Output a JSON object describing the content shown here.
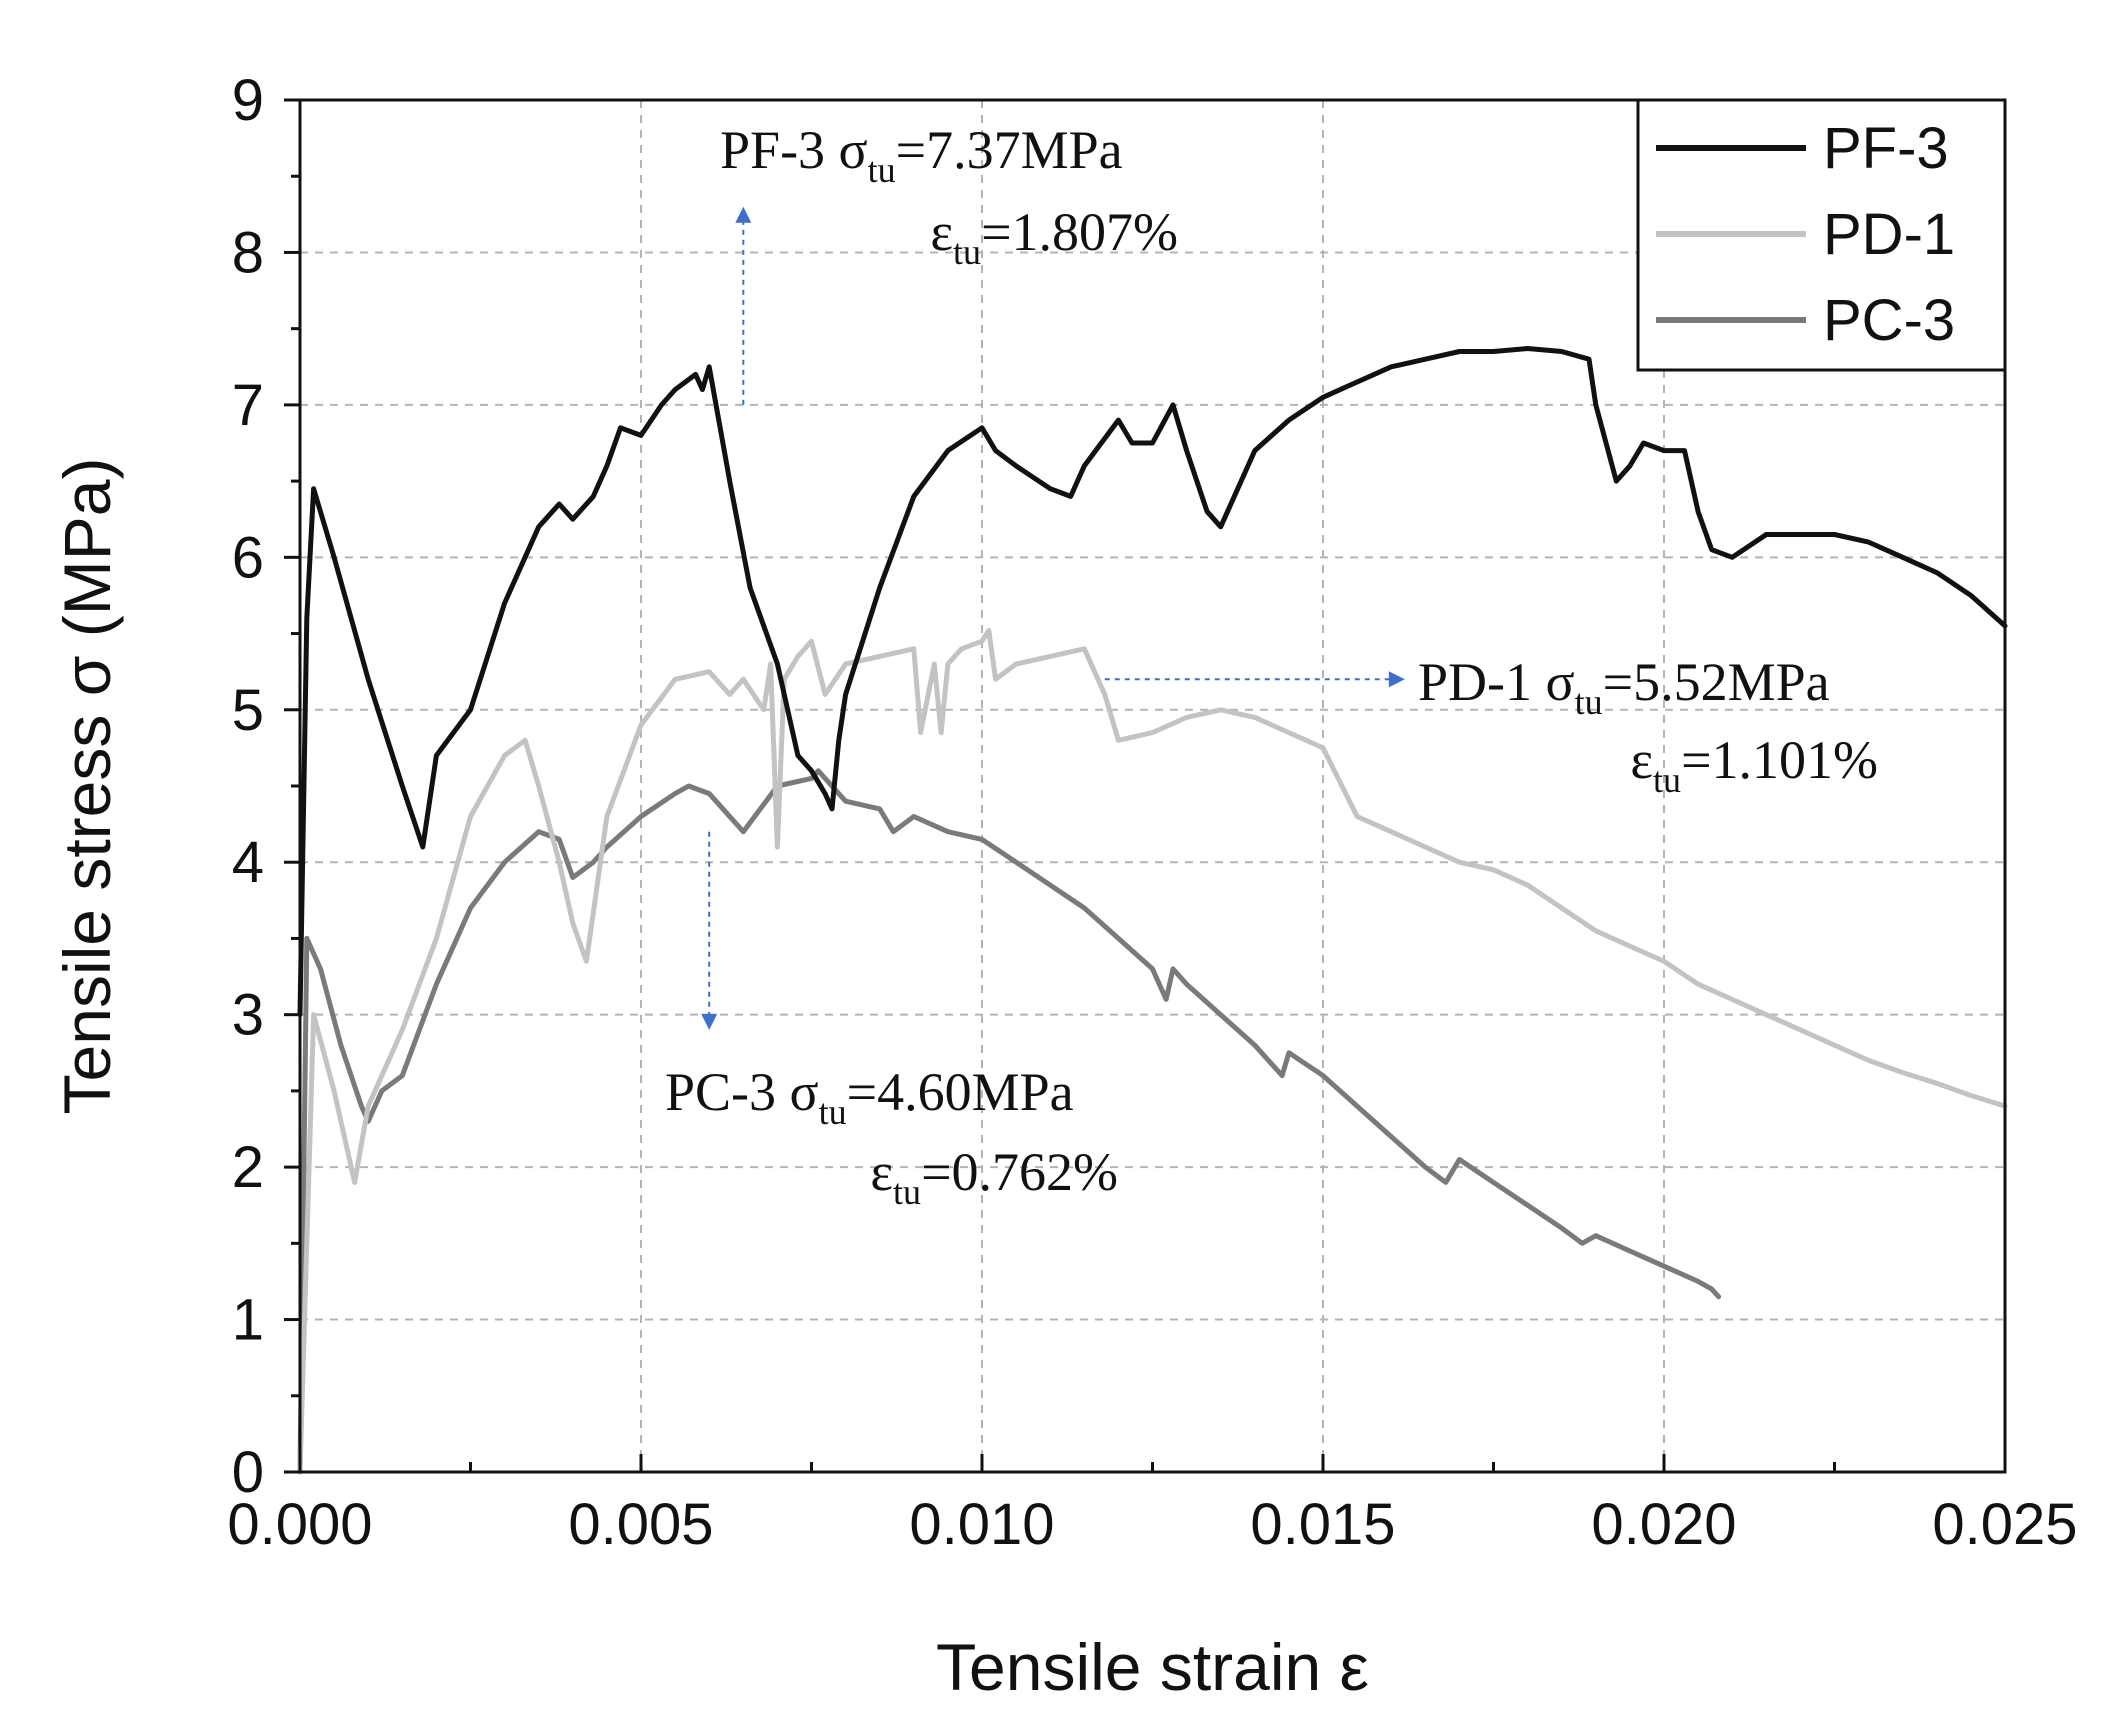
{
  "chart_data": {
    "type": "line",
    "title": "",
    "xlabel": "Tensile strain ε",
    "ylabel": "Tensile stress σ (MPa)",
    "xlim": [
      0,
      0.025
    ],
    "ylim": [
      0,
      9
    ],
    "x_ticks": [
      0,
      0.005,
      0.01,
      0.015,
      0.02,
      0.025
    ],
    "x_tick_labels": [
      "0.000",
      "0.005",
      "0.010",
      "0.015",
      "0.020",
      "0.025"
    ],
    "y_ticks": [
      0,
      1,
      2,
      3,
      4,
      5,
      6,
      7,
      8,
      9
    ],
    "y_tick_labels": [
      "0",
      "1",
      "2",
      "3",
      "4",
      "5",
      "6",
      "7",
      "8",
      "9"
    ],
    "grid": true,
    "legend_position": "top-right",
    "series": [
      {
        "name": "PF-3",
        "color": "#111111",
        "x": [
          0,
          0.0001,
          0.0002,
          0.0005,
          0.001,
          0.0015,
          0.0018,
          0.002,
          0.0025,
          0.003,
          0.0035,
          0.0038,
          0.004,
          0.0043,
          0.0045,
          0.0047,
          0.005,
          0.0053,
          0.0055,
          0.0058,
          0.0059,
          0.006,
          0.0063,
          0.0066,
          0.007,
          0.0073,
          0.0075,
          0.0077,
          0.0078,
          0.0079,
          0.008,
          0.0085,
          0.009,
          0.0095,
          0.01,
          0.0102,
          0.0105,
          0.011,
          0.0113,
          0.0115,
          0.012,
          0.0122,
          0.0125,
          0.0128,
          0.013,
          0.0133,
          0.0135,
          0.014,
          0.0145,
          0.015,
          0.0155,
          0.016,
          0.0165,
          0.017,
          0.0175,
          0.018,
          0.0185,
          0.0189,
          0.019,
          0.0193,
          0.0195,
          0.0197,
          0.02,
          0.0203,
          0.0205,
          0.0207,
          0.021,
          0.0215,
          0.022,
          0.0225,
          0.023,
          0.0235,
          0.024,
          0.0245,
          0.025
        ],
        "y": [
          3.0,
          5.6,
          6.45,
          6.0,
          5.2,
          4.5,
          4.1,
          4.7,
          5.0,
          5.7,
          6.2,
          6.35,
          6.25,
          6.4,
          6.6,
          6.85,
          6.8,
          7.0,
          7.1,
          7.2,
          7.1,
          7.25,
          6.5,
          5.8,
          5.3,
          4.7,
          4.6,
          4.45,
          4.35,
          4.8,
          5.1,
          5.8,
          6.4,
          6.7,
          6.85,
          6.7,
          6.6,
          6.45,
          6.4,
          6.6,
          6.9,
          6.75,
          6.75,
          7.0,
          6.7,
          6.3,
          6.2,
          6.7,
          6.9,
          7.05,
          7.15,
          7.25,
          7.3,
          7.35,
          7.35,
          7.37,
          7.35,
          7.3,
          7.0,
          6.5,
          6.6,
          6.75,
          6.7,
          6.7,
          6.3,
          6.05,
          6.0,
          6.15,
          6.15,
          6.15,
          6.1,
          6.0,
          5.9,
          5.75,
          5.55
        ]
      },
      {
        "name": "PD-1",
        "color": "#c3c3c3",
        "x": [
          0,
          0.0002,
          0.0005,
          0.0008,
          0.001,
          0.0015,
          0.002,
          0.0025,
          0.003,
          0.0033,
          0.0035,
          0.0038,
          0.004,
          0.0042,
          0.0045,
          0.005,
          0.0055,
          0.006,
          0.0063,
          0.0065,
          0.0068,
          0.0069,
          0.007,
          0.0071,
          0.0073,
          0.0075,
          0.0077,
          0.008,
          0.0085,
          0.009,
          0.0091,
          0.0093,
          0.0094,
          0.0095,
          0.0097,
          0.01,
          0.0101,
          0.0102,
          0.0105,
          0.011,
          0.0115,
          0.0118,
          0.012,
          0.0125,
          0.013,
          0.0135,
          0.014,
          0.0145,
          0.015,
          0.0155,
          0.016,
          0.0165,
          0.017,
          0.0175,
          0.018,
          0.0185,
          0.019,
          0.0195,
          0.02,
          0.0205,
          0.021,
          0.0215,
          0.022,
          0.0225,
          0.023,
          0.0235,
          0.024,
          0.0245,
          0.025
        ],
        "y": [
          0,
          3.0,
          2.5,
          1.9,
          2.4,
          2.9,
          3.5,
          4.3,
          4.7,
          4.8,
          4.5,
          4.0,
          3.6,
          3.35,
          4.3,
          4.9,
          5.2,
          5.25,
          5.1,
          5.2,
          5.0,
          5.3,
          4.1,
          5.2,
          5.35,
          5.45,
          5.1,
          5.3,
          5.35,
          5.4,
          4.85,
          5.3,
          4.85,
          5.3,
          5.4,
          5.45,
          5.52,
          5.2,
          5.3,
          5.35,
          5.4,
          5.1,
          4.8,
          4.85,
          4.95,
          5.0,
          4.95,
          4.85,
          4.75,
          4.3,
          4.2,
          4.1,
          4.0,
          3.95,
          3.85,
          3.7,
          3.55,
          3.45,
          3.35,
          3.2,
          3.1,
          3.0,
          2.9,
          2.8,
          2.7,
          2.62,
          2.55,
          2.47,
          2.4
        ]
      },
      {
        "name": "PC-3",
        "color": "#7a7a7a",
        "x": [
          0,
          0.0001,
          0.0003,
          0.0006,
          0.0009,
          0.001,
          0.0012,
          0.0015,
          0.002,
          0.0025,
          0.003,
          0.0035,
          0.0038,
          0.004,
          0.0043,
          0.0045,
          0.005,
          0.0055,
          0.0057,
          0.006,
          0.0065,
          0.007,
          0.0075,
          0.0076,
          0.008,
          0.0085,
          0.0087,
          0.009,
          0.0095,
          0.01,
          0.0105,
          0.011,
          0.0115,
          0.012,
          0.0125,
          0.0127,
          0.0128,
          0.013,
          0.0135,
          0.014,
          0.0144,
          0.0145,
          0.015,
          0.0155,
          0.016,
          0.0165,
          0.0168,
          0.017,
          0.0175,
          0.018,
          0.0185,
          0.0188,
          0.019,
          0.0195,
          0.02,
          0.0205,
          0.0207,
          0.0208
        ],
        "y": [
          0,
          3.5,
          3.3,
          2.8,
          2.4,
          2.3,
          2.5,
          2.6,
          3.2,
          3.7,
          4.0,
          4.2,
          4.15,
          3.9,
          4.0,
          4.1,
          4.3,
          4.45,
          4.5,
          4.45,
          4.2,
          4.5,
          4.55,
          4.6,
          4.4,
          4.35,
          4.2,
          4.3,
          4.2,
          4.15,
          4.0,
          3.85,
          3.7,
          3.5,
          3.3,
          3.1,
          3.3,
          3.2,
          3.0,
          2.8,
          2.6,
          2.75,
          2.6,
          2.4,
          2.2,
          2.0,
          1.9,
          2.05,
          1.9,
          1.75,
          1.6,
          1.5,
          1.55,
          1.45,
          1.35,
          1.25,
          1.2,
          1.15
        ]
      }
    ],
    "annotations": [
      {
        "id": "pf3",
        "series": "PF-3",
        "color": "#3e6fcb",
        "line1_prefix": "PF-3 σ",
        "line1_sub": "tu",
        "line1_value": "=7.37MPa",
        "line2_prefix": "ε",
        "line2_sub": "tu",
        "line2_value": "=1.807%",
        "anchor_x": 0.0065,
        "anchor_y": 7.0,
        "arrow_to_x": 0.0065,
        "arrow_to_y": 8.3
      },
      {
        "id": "pd1",
        "series": "PD-1",
        "color": "#3e6fcb",
        "line1_prefix": "PD-1 σ",
        "line1_sub": "tu",
        "line1_value": "=5.52MPa",
        "line2_prefix": "ε",
        "line2_sub": "tu",
        "line2_value": "=1.101%",
        "anchor_x": 0.0118,
        "anchor_y": 5.2,
        "arrow_to_x": 0.0162,
        "arrow_to_y": 5.2
      },
      {
        "id": "pc3",
        "series": "PC-3",
        "color": "#3e6fcb",
        "line1_prefix": "PC-3 σ",
        "line1_sub": "tu",
        "line1_value": "=4.60MPa",
        "line2_prefix": "ε",
        "line2_sub": "tu",
        "line2_value": "=0.762%",
        "anchor_x": 0.006,
        "anchor_y": 4.2,
        "arrow_to_x": 0.006,
        "arrow_to_y": 2.9
      }
    ]
  }
}
